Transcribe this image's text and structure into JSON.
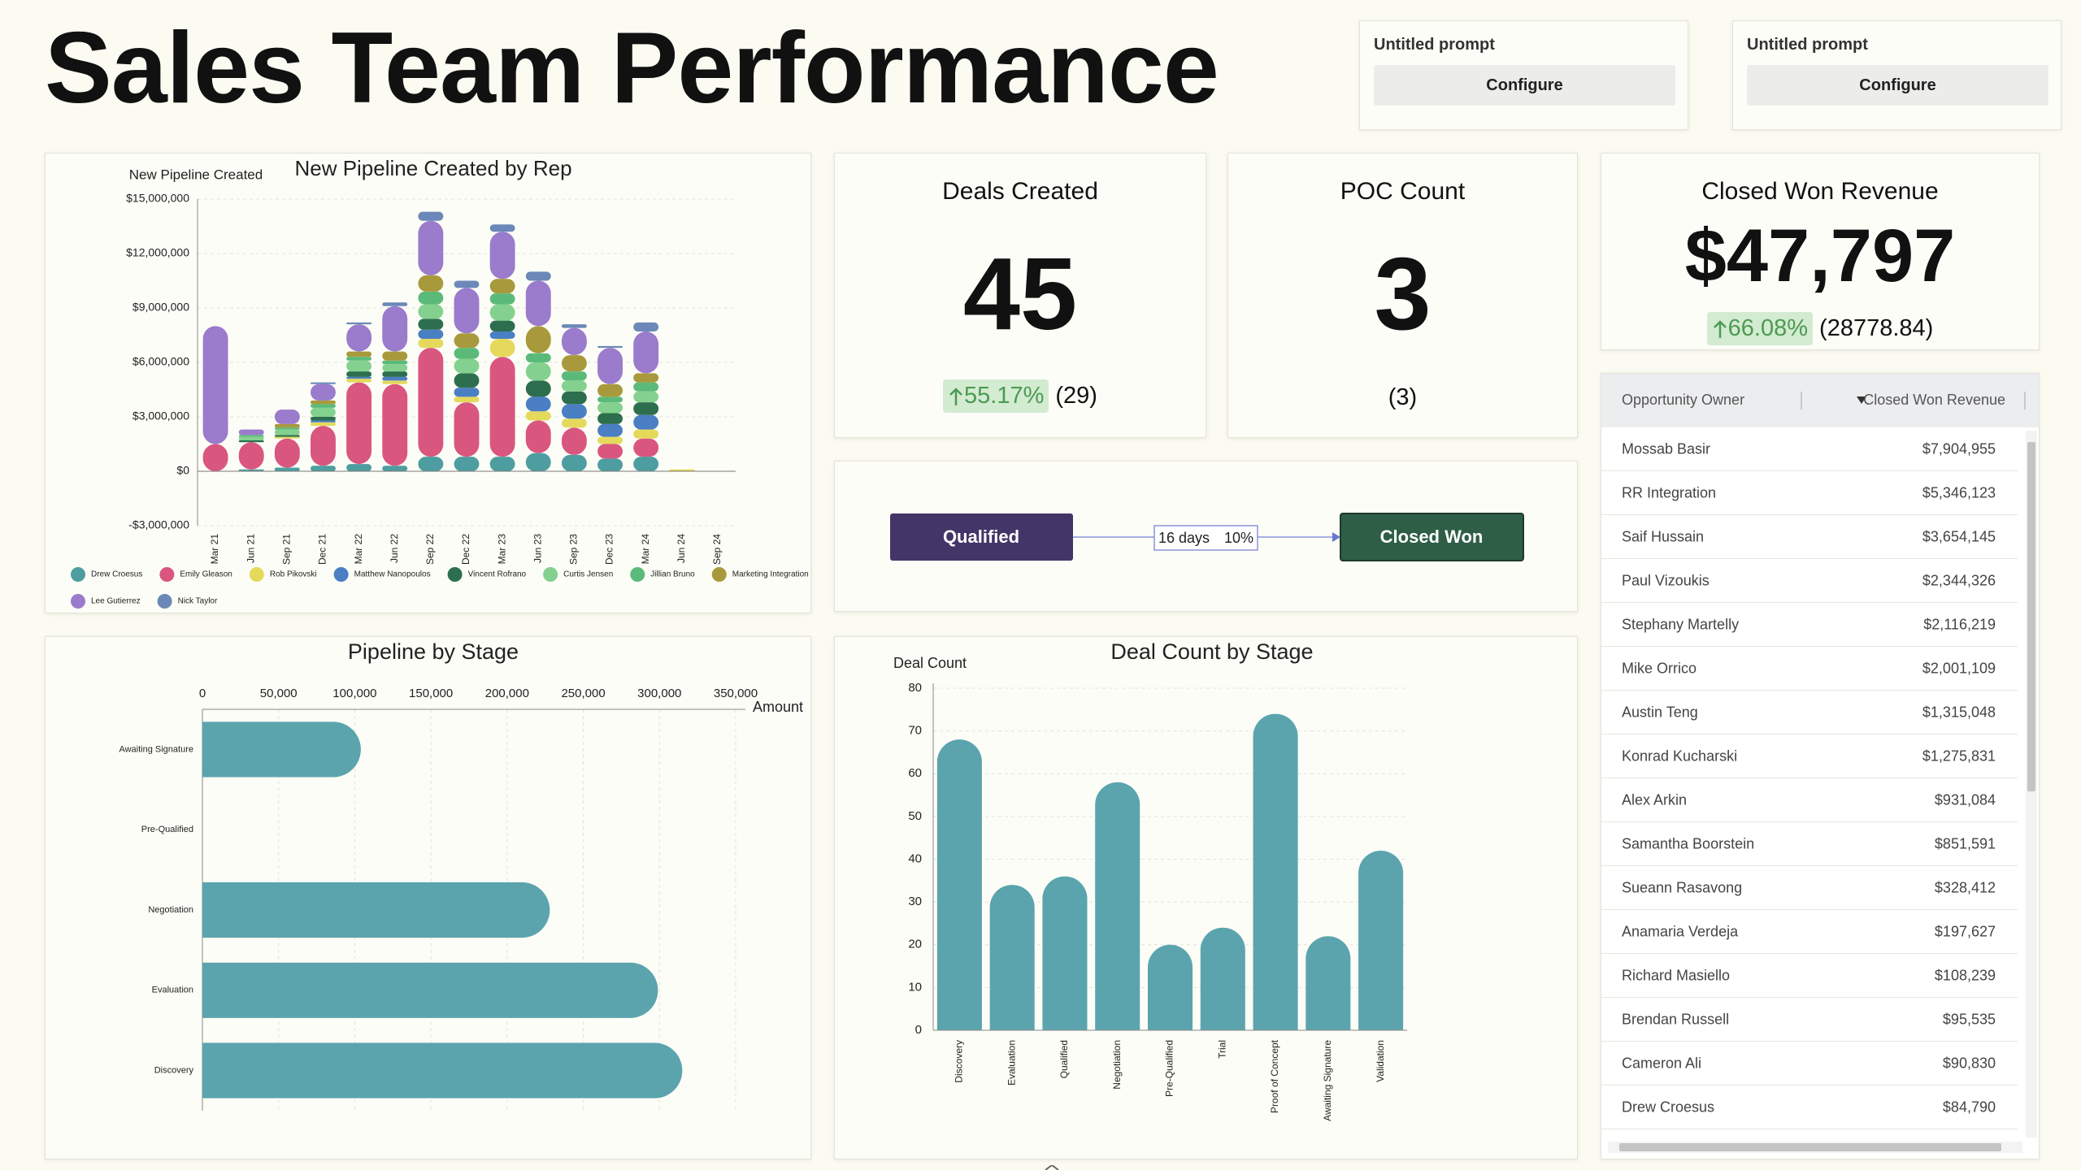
{
  "header": {
    "title": "Sales Team Performance"
  },
  "prompts": [
    {
      "label": "Untitled prompt",
      "button": "Configure"
    },
    {
      "label": "Untitled prompt",
      "button": "Configure"
    }
  ],
  "kpis": [
    {
      "title": "Deals Created",
      "value": "45",
      "change": "55.17%",
      "previous": "(29)"
    },
    {
      "title": "POC Count",
      "value": "3",
      "previous": "(3)"
    },
    {
      "title": "Closed Won Revenue",
      "value": "$47,797",
      "change": "66.08%",
      "previous": "(28778.84)"
    }
  ],
  "funnel": {
    "from": "Qualified",
    "duration": "16 days",
    "rate": "10%",
    "to": "Closed Won"
  },
  "table": {
    "columns": [
      "Opportunity Owner",
      "Closed Won Revenue"
    ],
    "rows": [
      [
        "Mossab Basir",
        "$7,904,955"
      ],
      [
        "RR Integration",
        "$5,346,123"
      ],
      [
        "Saif Hussain",
        "$3,654,145"
      ],
      [
        "Paul Vizoukis",
        "$2,344,326"
      ],
      [
        "Stephany Martelly",
        "$2,116,219"
      ],
      [
        "Mike Orrico",
        "$2,001,109"
      ],
      [
        "Austin Teng",
        "$1,315,048"
      ],
      [
        "Konrad Kucharski",
        "$1,275,831"
      ],
      [
        "Alex Arkin",
        "$931,084"
      ],
      [
        "Samantha Boorstein",
        "$851,591"
      ],
      [
        "Sueann Rasavong",
        "$328,412"
      ],
      [
        "Anamaria Verdeja",
        "$197,627"
      ],
      [
        "Richard Masiello",
        "$108,239"
      ],
      [
        "Brendan Russell",
        "$95,535"
      ],
      [
        "Cameron Ali",
        "$90,830"
      ],
      [
        "Drew Croesus",
        "$84,790"
      ]
    ]
  },
  "chart_data": [
    {
      "type": "stacked_bar",
      "title": "New Pipeline Created by Rep",
      "y_label": "New Pipeline Created",
      "categories": [
        "Mar 21",
        "Jun 21",
        "Sep 21",
        "Dec 21",
        "Mar 22",
        "Jun 22",
        "Sep 22",
        "Dec 22",
        "Mar 23",
        "Jun 23",
        "Sep 23",
        "Dec 23",
        "Mar 24",
        "Jun 24",
        "Sep 24"
      ],
      "series": [
        {
          "name": "Drew Croesus",
          "color": "#4e9da0",
          "values": [
            0,
            100000,
            200000,
            300000,
            400000,
            300000,
            800000,
            800000,
            800000,
            1000000,
            900000,
            700000,
            800000,
            0,
            0
          ]
        },
        {
          "name": "Emily Gleason",
          "color": "#d9567f",
          "values": [
            1500000,
            1500000,
            1600000,
            2200000,
            4500000,
            4500000,
            6000000,
            3000000,
            5500000,
            1800000,
            1500000,
            800000,
            1000000,
            0,
            0
          ]
        },
        {
          "name": "Rob Pikovski",
          "color": "#e5d95c",
          "values": [
            0,
            0,
            100000,
            200000,
            200000,
            200000,
            500000,
            300000,
            1000000,
            500000,
            500000,
            400000,
            500000,
            100000,
            0
          ]
        },
        {
          "name": "Matthew Nanopoulos",
          "color": "#4a7fc4",
          "values": [
            0,
            0,
            0,
            100000,
            100000,
            200000,
            500000,
            500000,
            400000,
            800000,
            800000,
            700000,
            800000,
            0,
            0
          ]
        },
        {
          "name": "Vincent Rofrano",
          "color": "#2d6e4e",
          "values": [
            0,
            100000,
            100000,
            200000,
            300000,
            300000,
            600000,
            800000,
            600000,
            900000,
            700000,
            600000,
            700000,
            0,
            0
          ]
        },
        {
          "name": "Curtis Jensen",
          "color": "#84d18f",
          "values": [
            0,
            200000,
            300000,
            500000,
            600000,
            400000,
            800000,
            800000,
            900000,
            1000000,
            600000,
            600000,
            600000,
            0,
            0
          ]
        },
        {
          "name": "Jillian Bruno",
          "color": "#5bba7a",
          "values": [
            0,
            100000,
            100000,
            200000,
            200000,
            200000,
            700000,
            600000,
            600000,
            500000,
            500000,
            300000,
            500000,
            0,
            0
          ]
        },
        {
          "name": "Marketing Integration",
          "color": "#a89a3c",
          "values": [
            0,
            0,
            200000,
            200000,
            300000,
            500000,
            900000,
            800000,
            800000,
            1500000,
            900000,
            700000,
            500000,
            0,
            0
          ]
        },
        {
          "name": "Lee Gutierrez",
          "color": "#9a7bcc",
          "values": [
            6500000,
            300000,
            800000,
            900000,
            1500000,
            2500000,
            3000000,
            2500000,
            2600000,
            2500000,
            1500000,
            2000000,
            2300000,
            0,
            0
          ]
        },
        {
          "name": "Nick Taylor",
          "color": "#6b88b8",
          "values": [
            0,
            0,
            0,
            100000,
            100000,
            200000,
            500000,
            400000,
            400000,
            500000,
            200000,
            100000,
            500000,
            0,
            0
          ]
        }
      ],
      "ylim": [
        -3000000,
        15000000
      ],
      "yticks": [
        {
          "value": -3000000,
          "label": "-$3,000,000"
        },
        {
          "value": 0,
          "label": "$0"
        },
        {
          "value": 3000000,
          "label": "$3,000,000"
        },
        {
          "value": 6000000,
          "label": "$6,000,000"
        },
        {
          "value": 9000000,
          "label": "$9,000,000"
        },
        {
          "value": 12000000,
          "label": "$12,000,000"
        },
        {
          "value": 15000000,
          "label": "$15,000,000"
        }
      ],
      "grid": true
    },
    {
      "type": "hbar",
      "title": "Pipeline by Stage",
      "x_label": "Amount",
      "categories": [
        "Awaiting Signature",
        "Pre-Qualified",
        "Negotiation",
        "Evaluation",
        "Discovery"
      ],
      "values": [
        104000,
        null,
        228000,
        299000,
        315000
      ],
      "color": "#5ba4ae",
      "xlim": [
        0,
        350000
      ],
      "xticks": [
        0,
        {
          "value": 50000,
          "label": "50,000"
        },
        {
          "value": 100000,
          "label": "100,000"
        },
        {
          "value": 150000,
          "label": "150,000"
        },
        {
          "value": 200000,
          "label": "200,000"
        },
        {
          "value": 250000,
          "label": "250,000"
        },
        {
          "value": 300000,
          "label": "300,000"
        },
        {
          "value": 350000,
          "label": "350,000"
        }
      ],
      "grid": true
    },
    {
      "type": "bar",
      "title": "Deal Count by Stage",
      "y_label": "Deal Count",
      "categories": [
        "Discovery",
        "Evaluation",
        "Qualified",
        "Negotiation",
        "Pre-Qualified",
        "Trial",
        "Proof of Concept",
        "Awaiting Signature",
        "Validation"
      ],
      "values": [
        68,
        34,
        36,
        58,
        20,
        24,
        74,
        22,
        42
      ],
      "color": "#5ba4ae",
      "ylim": [
        0,
        80
      ],
      "yticks": [
        0,
        10,
        20,
        30,
        40,
        50,
        60,
        70,
        80
      ],
      "grid": true
    }
  ]
}
